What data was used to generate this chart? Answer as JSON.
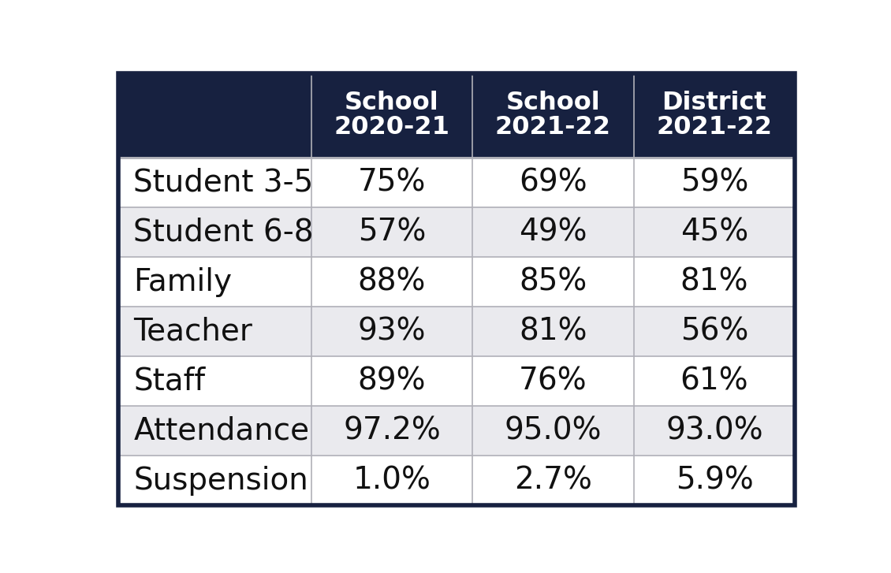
{
  "header_bg_color": "#172140",
  "header_text_color": "#ffffff",
  "row_labels": [
    "Student 3-5",
    "Student 6-8",
    "Family",
    "Teacher",
    "Staff",
    "Attendance",
    "Suspension"
  ],
  "col_headers": [
    [
      "School",
      "2020-21"
    ],
    [
      "School",
      "2021-22"
    ],
    [
      "District",
      "2021-22"
    ]
  ],
  "values": [
    [
      "75%",
      "69%",
      "59%"
    ],
    [
      "57%",
      "49%",
      "45%"
    ],
    [
      "88%",
      "85%",
      "81%"
    ],
    [
      "93%",
      "81%",
      "56%"
    ],
    [
      "89%",
      "76%",
      "61%"
    ],
    [
      "97.2%",
      "95.0%",
      "93.0%"
    ],
    [
      "1.0%",
      "2.7%",
      "5.9%"
    ]
  ],
  "row_bg_colors": [
    "#ffffff",
    "#eaeaee",
    "#ffffff",
    "#eaeaee",
    "#ffffff",
    "#eaeaee",
    "#ffffff"
  ],
  "grid_color": "#b0b0b8",
  "border_color": "#172140",
  "label_fontsize": 28,
  "header_fontsize": 23,
  "value_fontsize": 28
}
